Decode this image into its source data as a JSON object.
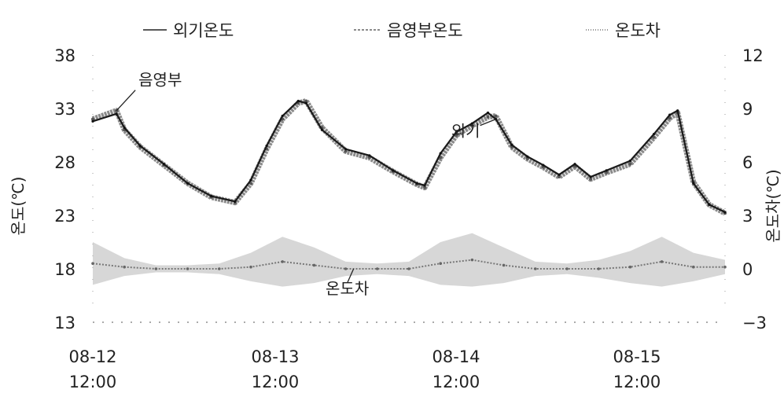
{
  "chart_data": {
    "type": "line",
    "ylabel": "온도(℃)",
    "y2label": "온도차(℃)",
    "ylim": [
      13,
      38
    ],
    "y2lim": [
      -3,
      12
    ],
    "y_ticks": [
      "38",
      "33",
      "28",
      "23",
      "18",
      "13"
    ],
    "y2_ticks": [
      "12",
      "9",
      "6",
      "3",
      "0",
      "−3"
    ],
    "x_ticks": [
      {
        "date": "08-12",
        "time": "12:00"
      },
      {
        "date": "08-13",
        "time": "12:00"
      },
      {
        "date": "08-14",
        "time": "12:00"
      },
      {
        "date": "08-15",
        "time": "12:00"
      }
    ],
    "x_range": [
      "08-12 12:00",
      "08-15 20:00"
    ],
    "legend": {
      "position": "top",
      "items": [
        {
          "label": "외기온도",
          "style": "solid"
        },
        {
          "label": "음영부온도",
          "style": "dashed"
        },
        {
          "label": "온도차",
          "style": "dotted"
        }
      ]
    },
    "annotations": [
      {
        "text": "음영부",
        "points_to": "음영부온도",
        "at": "08-12 15:00"
      },
      {
        "text": "외기",
        "points_to": "외기온도",
        "at": "08-14 15:00"
      },
      {
        "text": "온도차",
        "points_to": "온도차",
        "at": "08-13 21:00"
      }
    ],
    "series": [
      {
        "name": "외기온도",
        "axis": "left",
        "style": "solid",
        "x": [
          "08-12 12:00",
          "08-12 15:00",
          "08-12 16:00",
          "08-12 18:00",
          "08-12 21:00",
          "08-13 00:00",
          "08-13 03:00",
          "08-13 06:00",
          "08-13 08:00",
          "08-13 10:00",
          "08-13 12:00",
          "08-13 14:00",
          "08-13 15:00",
          "08-13 17:00",
          "08-13 20:00",
          "08-13 23:00",
          "08-14 02:00",
          "08-14 05:00",
          "08-14 06:00",
          "08-14 08:00",
          "08-14 10:00",
          "08-14 12:00",
          "08-14 14:00",
          "08-14 15:00",
          "08-14 17:00",
          "08-14 19:00",
          "08-14 21:00",
          "08-14 23:00",
          "08-15 01:00",
          "08-15 03:00",
          "08-15 05:00",
          "08-15 08:00",
          "08-15 11:00",
          "08-15 13:00",
          "08-15 14:00",
          "08-15 16:00",
          "08-15 18:00",
          "08-15 20:00"
        ],
        "values": [
          31.8,
          32.5,
          31.2,
          29.5,
          27.8,
          26.0,
          24.8,
          24.3,
          26.3,
          29.5,
          32.3,
          33.7,
          33.5,
          31.0,
          29.2,
          28.6,
          27.2,
          26.0,
          25.8,
          28.8,
          30.8,
          31.6,
          32.6,
          32.0,
          29.6,
          28.5,
          27.7,
          26.8,
          27.8,
          26.6,
          27.2,
          28.1,
          30.6,
          32.4,
          32.8,
          26.0,
          24.0,
          23.3
        ]
      },
      {
        "name": "음영부온도",
        "axis": "left",
        "style": "dashed",
        "x": [
          "08-12 12:00",
          "08-12 15:00",
          "08-12 16:00",
          "08-12 18:00",
          "08-12 21:00",
          "08-13 00:00",
          "08-13 03:00",
          "08-13 06:00",
          "08-13 08:00",
          "08-13 10:00",
          "08-13 12:00",
          "08-13 14:00",
          "08-13 15:00",
          "08-13 17:00",
          "08-13 20:00",
          "08-13 23:00",
          "08-14 02:00",
          "08-14 05:00",
          "08-14 06:00",
          "08-14 08:00",
          "08-14 10:00",
          "08-14 12:00",
          "08-14 14:00",
          "08-14 15:00",
          "08-14 17:00",
          "08-14 19:00",
          "08-14 21:00",
          "08-14 23:00",
          "08-15 01:00",
          "08-15 03:00",
          "08-15 05:00",
          "08-15 08:00",
          "08-15 11:00",
          "08-15 13:00",
          "08-15 14:00",
          "08-15 16:00",
          "08-15 18:00",
          "08-15 20:00"
        ],
        "values": [
          32.0,
          32.8,
          31.0,
          29.4,
          27.7,
          26.0,
          24.7,
          24.2,
          26.0,
          29.2,
          32.0,
          33.5,
          33.7,
          31.2,
          29.0,
          28.4,
          27.1,
          25.9,
          25.6,
          28.4,
          30.5,
          31.4,
          32.2,
          32.3,
          29.4,
          28.3,
          27.5,
          26.6,
          27.6,
          26.4,
          27.0,
          27.8,
          30.3,
          32.1,
          32.6,
          26.1,
          24.0,
          23.2
        ]
      },
      {
        "name": "온도차",
        "axis": "right",
        "style": "dotted",
        "x": [
          "08-12 12:00",
          "08-12 16:00",
          "08-12 20:00",
          "08-13 00:00",
          "08-13 04:00",
          "08-13 08:00",
          "08-13 12:00",
          "08-13 16:00",
          "08-13 20:00",
          "08-14 00:00",
          "08-14 04:00",
          "08-14 08:00",
          "08-14 12:00",
          "08-14 16:00",
          "08-14 20:00",
          "08-15 00:00",
          "08-15 04:00",
          "08-15 08:00",
          "08-15 12:00",
          "08-15 16:00",
          "08-15 20:00"
        ],
        "values": [
          0.3,
          0.1,
          0.0,
          0.0,
          0.0,
          0.1,
          0.4,
          0.2,
          0.0,
          0.0,
          0.0,
          0.3,
          0.5,
          0.2,
          0.0,
          0.0,
          0.0,
          0.1,
          0.4,
          0.1,
          0.1
        ],
        "spread": [
          1.2,
          0.5,
          0.2,
          0.2,
          0.3,
          0.8,
          1.4,
          1.0,
          0.4,
          0.3,
          0.4,
          1.2,
          1.5,
          1.0,
          0.4,
          0.3,
          0.5,
          0.9,
          1.4,
          0.8,
          0.4
        ]
      }
    ]
  }
}
